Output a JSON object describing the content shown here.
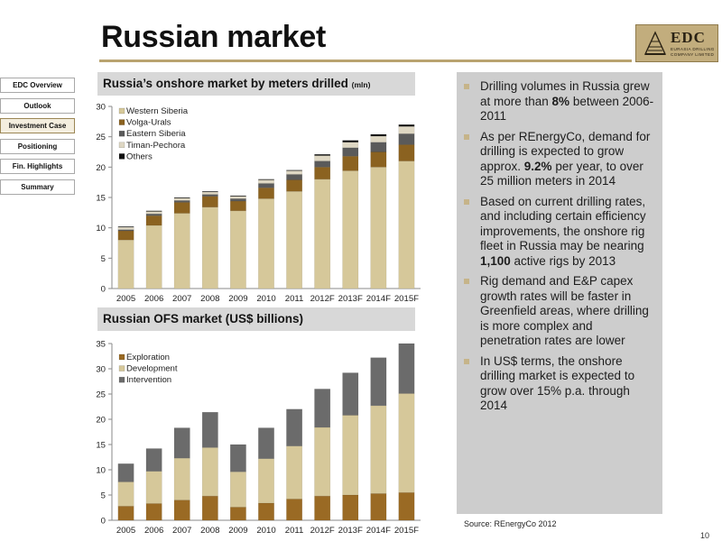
{
  "title": "Russian market",
  "logo": {
    "text": "EDC",
    "subtitle": "EURASIA DRILLING COMPANY LIMITED"
  },
  "nav": [
    {
      "label": "EDC Overview",
      "active": false
    },
    {
      "label": "Outlook",
      "active": false
    },
    {
      "label": "Investment Case",
      "active": true
    },
    {
      "label": "Positioning",
      "active": false
    },
    {
      "label": "Fin. Highlights",
      "active": false
    },
    {
      "label": "Summary",
      "active": false
    }
  ],
  "chart_titles": {
    "top_main": "Russia’s onshore market by meters drilled",
    "top_unit": "(mln)",
    "bottom": "Russian OFS market (US$ billions)"
  },
  "chart_data": [
    {
      "type": "bar",
      "stacked": true,
      "title": "Russia’s onshore market by meters drilled (mln)",
      "categories": [
        "2005",
        "2006",
        "2007",
        "2008",
        "2009",
        "2010",
        "2011",
        "2012F",
        "2013F",
        "2014F",
        "2015F"
      ],
      "ylim": [
        0,
        30
      ],
      "yticks": [
        0,
        5,
        10,
        15,
        20,
        25,
        30
      ],
      "grid": false,
      "legend": "top-left",
      "series": [
        {
          "name": "Western Siberia",
          "values": [
            8.0,
            10.4,
            12.4,
            13.4,
            12.8,
            14.8,
            16.0,
            18.0,
            19.4,
            20.0,
            21.0
          ]
        },
        {
          "name": "Volga-Urals",
          "values": [
            1.5,
            1.6,
            1.8,
            1.8,
            1.6,
            1.8,
            1.9,
            2.0,
            2.4,
            2.5,
            2.7
          ]
        },
        {
          "name": "Eastern Siberia",
          "values": [
            0.2,
            0.3,
            0.3,
            0.3,
            0.4,
            0.7,
            0.9,
            1.0,
            1.4,
            1.6,
            1.8
          ]
        },
        {
          "name": "Timan-Pechora",
          "values": [
            0.4,
            0.4,
            0.4,
            0.4,
            0.4,
            0.6,
            0.6,
            0.9,
            0.9,
            1.0,
            1.2
          ]
        },
        {
          "name": "Others",
          "values": [
            0.1,
            0.1,
            0.1,
            0.1,
            0.1,
            0.1,
            0.1,
            0.2,
            0.3,
            0.3,
            0.3
          ]
        }
      ],
      "colors": [
        "#d6c89a",
        "#8b6220",
        "#5a5a5a",
        "#ded7c3",
        "#111111"
      ]
    },
    {
      "type": "bar",
      "stacked": true,
      "title": "Russian OFS market (US$ billions)",
      "categories": [
        "2005",
        "2006",
        "2007",
        "2008",
        "2009",
        "2010",
        "2011",
        "2012F",
        "2013F",
        "2014F",
        "2015F"
      ],
      "ylim": [
        0,
        35
      ],
      "yticks": [
        0,
        5,
        10,
        15,
        20,
        25,
        30,
        35
      ],
      "grid": false,
      "legend": "top-left",
      "series": [
        {
          "name": "Exploration",
          "values": [
            2.8,
            3.3,
            4.0,
            4.8,
            2.6,
            3.4,
            4.2,
            4.8,
            5.0,
            5.3,
            5.5
          ]
        },
        {
          "name": "Development",
          "values": [
            4.8,
            6.4,
            8.3,
            9.6,
            7.0,
            8.8,
            10.5,
            13.6,
            15.8,
            17.4,
            19.6
          ]
        },
        {
          "name": "Intervention",
          "values": [
            3.6,
            4.5,
            6.0,
            7.0,
            5.4,
            6.1,
            7.3,
            7.6,
            8.4,
            9.5,
            9.9
          ]
        }
      ],
      "colors": [
        "#9a6a24",
        "#d6c89a",
        "#6b6b6b"
      ]
    }
  ],
  "bullets": [
    {
      "parts": [
        {
          "t": "Drilling volumes in Russia grew at more than ",
          "b": false
        },
        {
          "t": "8%",
          "b": true
        },
        {
          "t": " between 2006-2011",
          "b": false
        }
      ]
    },
    {
      "parts": [
        {
          "t": "As per REnergyCo, demand for drilling is expected to grow approx. ",
          "b": false
        },
        {
          "t": "9.2%",
          "b": true
        },
        {
          "t": " per year, to over 25 million meters in 2014",
          "b": false
        }
      ]
    },
    {
      "parts": [
        {
          "t": "Based on current drilling rates, and including certain efficiency improvements, the onshore rig fleet in Russia may be nearing ",
          "b": false
        },
        {
          "t": "1,100",
          "b": true
        },
        {
          "t": " active rigs by 2013",
          "b": false
        }
      ]
    },
    {
      "parts": [
        {
          "t": "Rig demand and E&P capex growth rates will be faster in Greenfield areas, where drilling is more complex and penetration rates are lower",
          "b": false
        }
      ]
    },
    {
      "parts": [
        {
          "t": "In US$ terms, the onshore drilling market is expected to grow over 15% p.a. through 2014",
          "b": false
        }
      ]
    }
  ],
  "source": "Source: REnergyCo 2012",
  "page_number": "10"
}
